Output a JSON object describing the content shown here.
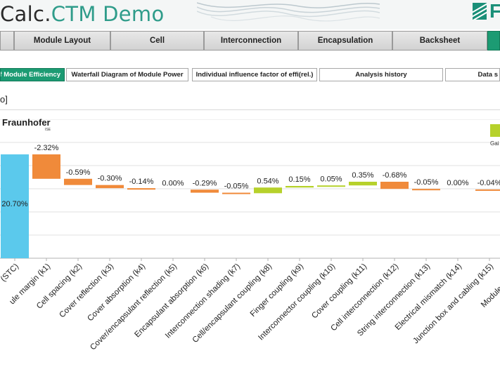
{
  "header": {
    "title_prefix": "Calc.",
    "title_suffix": "CTM Demo"
  },
  "top_tabs": [
    {
      "label": "Module Layout"
    },
    {
      "label": "Cell"
    },
    {
      "label": "Interconnection"
    },
    {
      "label": "Encapsulation"
    },
    {
      "label": "Backsheet"
    }
  ],
  "sub_tabs": [
    {
      "label": "of Module Efficiency",
      "active": true
    },
    {
      "label": "Waterfall Diagram of Module Power"
    },
    {
      "label": "Individual influence factor of effi(rel.)"
    },
    {
      "label": "Analysis history"
    },
    {
      "label": "Data s"
    }
  ],
  "unit_label": "o]",
  "brand": {
    "name": "Fraunhofer",
    "sub": "ISE"
  },
  "legend": {
    "gain_label": "Gai",
    "gain_color": "#b6d12b"
  },
  "colors": {
    "accent": "#1c9b73",
    "start_bar": "#5bc9ec",
    "loss": "#f08a3a",
    "gain": "#b6d12b"
  },
  "chart_data": {
    "type": "bar",
    "subtype": "waterfall",
    "categories": [
      "(STC)",
      "ule margin (k1)",
      "Cell spacing (k2)",
      "Cover reflection (k3)",
      "Cover absorption (k4)",
      "Cover/encapsulant reflection (k5)",
      "Encapsulant absorption (k6)",
      "Interconnection shading (k7)",
      "Cell/encapsulant coupling (k8)",
      "Finger coupling (k9)",
      "Interconnector coupling (k10)",
      "Cover coupling (k11)",
      "Cell interconnection (k12)",
      "String interconnection (k13)",
      "Electrical mismatch (k14)",
      "Junction box and cabling (k15)",
      "Module efficienc"
    ],
    "values": [
      20.7,
      -2.32,
      -0.59,
      -0.3,
      -0.14,
      0.0,
      -0.29,
      -0.05,
      0.54,
      0.15,
      0.05,
      0.35,
      -0.68,
      -0.05,
      0.0,
      -0.04,
      null
    ],
    "value_labels": [
      "20.70%",
      "-2.32%",
      "-0.59%",
      "-0.30%",
      "-0.14%",
      "0.00%",
      "-0.29%",
      "-0.05%",
      "0.54%",
      "0.15%",
      "0.05%",
      "0.35%",
      "-0.68%",
      "-0.05%",
      "0.00%",
      "-0.04%",
      ""
    ],
    "grid": true,
    "legend_position": "top-right"
  }
}
